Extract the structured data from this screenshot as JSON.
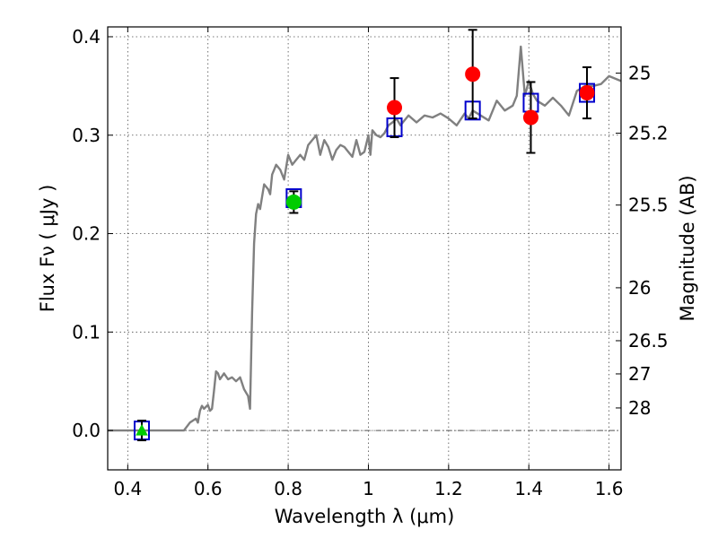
{
  "chart_data": {
    "type": "scatter",
    "xlabel": "Wavelength  λ (μm)",
    "ylabel": "Flux  Fν  ( μJy )",
    "ylabel_right": "Magnitude (AB)",
    "xlim": [
      0.35,
      1.63
    ],
    "ylim": [
      -0.04,
      0.41
    ],
    "x_ticks": [
      0.4,
      0.6,
      0.8,
      1.0,
      1.2,
      1.4,
      1.6
    ],
    "x_tick_labels": [
      "0.4",
      "0.6",
      "0.8",
      "1",
      "1.2",
      "1.4",
      "1.6"
    ],
    "y_ticks": [
      0.0,
      0.1,
      0.2,
      0.3,
      0.4
    ],
    "y_tick_labels": [
      "0.0",
      "0.1",
      "0.2",
      "0.3",
      "0.4"
    ],
    "right_ticks": [
      {
        "label": "25",
        "flux": 0.363
      },
      {
        "label": "25.2",
        "flux": 0.302
      },
      {
        "label": "25.5",
        "flux": 0.229
      },
      {
        "label": "26",
        "flux": 0.145
      },
      {
        "label": "26.5",
        "flux": 0.0912
      },
      {
        "label": "27",
        "flux": 0.0575
      },
      {
        "label": "28",
        "flux": 0.0229
      }
    ],
    "grid": true,
    "reference_line_y": 0,
    "model_spectrum": {
      "color": "#808080",
      "x": [
        0.35,
        0.54,
        0.555,
        0.57,
        0.575,
        0.58,
        0.585,
        0.59,
        0.6,
        0.605,
        0.61,
        0.615,
        0.62,
        0.625,
        0.63,
        0.64,
        0.65,
        0.66,
        0.67,
        0.68,
        0.69,
        0.7,
        0.705,
        0.71,
        0.715,
        0.72,
        0.725,
        0.73,
        0.74,
        0.75,
        0.755,
        0.76,
        0.765,
        0.77,
        0.78,
        0.79,
        0.8,
        0.81,
        0.82,
        0.83,
        0.84,
        0.85,
        0.86,
        0.87,
        0.88,
        0.89,
        0.9,
        0.91,
        0.92,
        0.93,
        0.94,
        0.95,
        0.96,
        0.97,
        0.98,
        0.99,
        1.0,
        1.005,
        1.01,
        1.02,
        1.03,
        1.04,
        1.05,
        1.06,
        1.07,
        1.08,
        1.1,
        1.12,
        1.14,
        1.16,
        1.18,
        1.2,
        1.22,
        1.24,
        1.25,
        1.26,
        1.28,
        1.3,
        1.32,
        1.34,
        1.36,
        1.37,
        1.38,
        1.39,
        1.4,
        1.41,
        1.42,
        1.44,
        1.46,
        1.48,
        1.5,
        1.52,
        1.54,
        1.56,
        1.58,
        1.6,
        1.63
      ],
      "y": [
        0.0,
        0.0,
        0.008,
        0.012,
        0.008,
        0.02,
        0.025,
        0.022,
        0.026,
        0.02,
        0.022,
        0.04,
        0.06,
        0.058,
        0.052,
        0.058,
        0.052,
        0.054,
        0.05,
        0.054,
        0.042,
        0.035,
        0.022,
        0.12,
        0.19,
        0.22,
        0.23,
        0.225,
        0.25,
        0.245,
        0.24,
        0.26,
        0.265,
        0.27,
        0.265,
        0.255,
        0.28,
        0.27,
        0.275,
        0.28,
        0.275,
        0.29,
        0.295,
        0.3,
        0.28,
        0.295,
        0.288,
        0.275,
        0.285,
        0.29,
        0.288,
        0.283,
        0.278,
        0.295,
        0.28,
        0.283,
        0.3,
        0.28,
        0.305,
        0.3,
        0.298,
        0.302,
        0.31,
        0.313,
        0.317,
        0.31,
        0.32,
        0.313,
        0.32,
        0.318,
        0.322,
        0.317,
        0.31,
        0.322,
        0.317,
        0.325,
        0.32,
        0.315,
        0.335,
        0.325,
        0.33,
        0.34,
        0.39,
        0.34,
        0.355,
        0.342,
        0.335,
        0.33,
        0.338,
        0.33,
        0.32,
        0.345,
        0.35,
        0.35,
        0.352,
        0.36,
        0.355
      ]
    },
    "series": [
      {
        "name": "model-bandpass-fluxes",
        "marker": "square",
        "color": "#0000cc",
        "x": [
          0.435,
          0.814,
          1.065,
          1.26,
          1.405,
          1.545
        ],
        "y": [
          0.0,
          0.236,
          0.308,
          0.325,
          0.333,
          0.343
        ]
      },
      {
        "name": "observed-photometry",
        "marker": "circle",
        "color": "#ff0000",
        "x": [
          1.065,
          1.26,
          1.405,
          1.545
        ],
        "y": [
          0.328,
          0.362,
          0.318,
          0.343
        ],
        "yerr": [
          0.03,
          0.045,
          0.036,
          0.026
        ]
      },
      {
        "name": "observed-photometry-green",
        "marker": "circle",
        "color": "#00cc00",
        "x": [
          0.814
        ],
        "y": [
          0.232
        ],
        "yerr": [
          0.011
        ]
      },
      {
        "name": "upper-limit",
        "marker": "triangle",
        "color": "#00cc00",
        "x": [
          0.435
        ],
        "y": [
          0.0
        ],
        "yerr": [
          0.01
        ]
      }
    ]
  }
}
